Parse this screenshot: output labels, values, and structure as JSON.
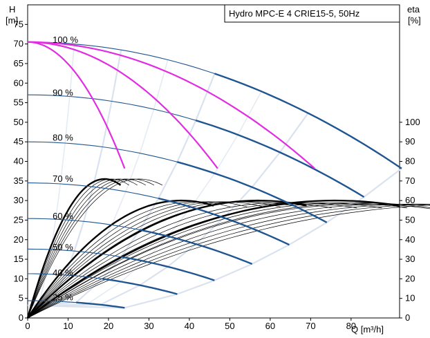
{
  "chart_data": {
    "type": "line",
    "title": "Hydro MPC-E 4 CRIE15-5, 50Hz",
    "xlabel": "Q [m³/h]",
    "ylabel_left_unit": "H",
    "ylabel_left_bracket": "[m]",
    "ylabel_right_unit": "eta",
    "ylabel_right_bracket": "[%]",
    "xlim": [
      0,
      92
    ],
    "ylim_left": [
      0,
      80
    ],
    "ylim_right": [
      0,
      100
    ],
    "x_ticks": [
      "0",
      "10",
      "20",
      "30",
      "40",
      "50",
      "60",
      "70",
      "80"
    ],
    "y_left_ticks": [
      "0",
      "5",
      "10",
      "15",
      "20",
      "25",
      "30",
      "35",
      "40",
      "45",
      "50",
      "55",
      "60",
      "65",
      "70",
      "75"
    ],
    "y_right_ticks": [
      "0",
      "10",
      "20",
      "30",
      "40",
      "50",
      "60",
      "70",
      "80",
      "90",
      "100"
    ],
    "grid": false,
    "speed_labels": [
      {
        "text": "100 %",
        "q": 5.5,
        "h": 71
      },
      {
        "text": "90 %",
        "q": 5.5,
        "h": 57.5
      },
      {
        "text": "80 %",
        "q": 5.5,
        "h": 46
      },
      {
        "text": "70 %",
        "q": 5.5,
        "h": 35.5
      },
      {
        "text": "60 %",
        "q": 5.5,
        "h": 26
      },
      {
        "text": "50 %",
        "q": 5.5,
        "h": 18
      },
      {
        "text": "40 %",
        "q": 5.5,
        "h": 11.5
      },
      {
        "text": "25 %",
        "q": 5.5,
        "h": 5.2
      }
    ],
    "qh_series": [
      {
        "speed": 100,
        "h0": 70.5,
        "qmax": 92.5,
        "hend": 38.2
      },
      {
        "speed": 90,
        "h0": 57,
        "qmax": 83.2,
        "hend": 30.9
      },
      {
        "speed": 80,
        "h0": 45,
        "qmax": 74,
        "hend": 24.4
      },
      {
        "speed": 70,
        "h0": 34.5,
        "qmax": 64.7,
        "hend": 18.7
      },
      {
        "speed": 60,
        "h0": 25.4,
        "qmax": 55.5,
        "hend": 13.8
      },
      {
        "speed": 50,
        "h0": 17.6,
        "qmax": 46.2,
        "hend": 9.6
      },
      {
        "speed": 40,
        "h0": 11.3,
        "qmax": 37,
        "hend": 6.1
      },
      {
        "speed": 25,
        "h0": 4.4,
        "qmax": 24,
        "hend": 2.6
      }
    ],
    "max_line_series": [
      {
        "pumps": 1,
        "q": [
          0,
          24
        ],
        "h": [
          70.5,
          38.2
        ]
      },
      {
        "pumps": 2,
        "q": [
          0,
          47
        ],
        "h": [
          70.5,
          38.2
        ]
      },
      {
        "pumps": 3,
        "q": [
          0,
          71
        ],
        "h": [
          70.5,
          38.2
        ]
      }
    ],
    "eta_series": [
      {
        "qpeak": 19,
        "eta": 71,
        "qend": 23
      },
      {
        "qpeak": 38,
        "eta": 60,
        "qend": 46
      },
      {
        "qpeak": 57,
        "eta": 60,
        "qend": 69
      },
      {
        "qpeak": 76,
        "eta": 60,
        "qend": 92
      }
    ]
  }
}
